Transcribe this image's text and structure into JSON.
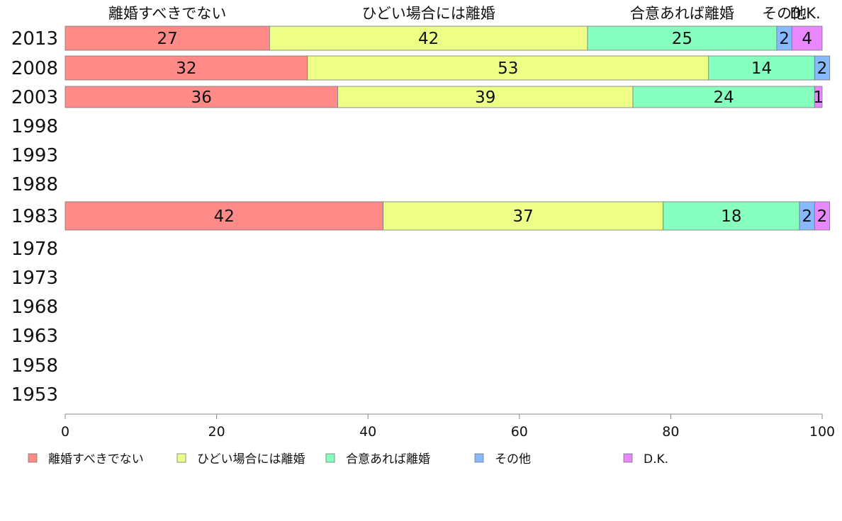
{
  "chart_data": {
    "type": "bar",
    "orientation": "horizontal",
    "stacked": true,
    "categories": [
      "2013",
      "2008",
      "2003",
      "1998",
      "1993",
      "1988",
      "1983",
      "1978",
      "1973",
      "1968",
      "1963",
      "1958",
      "1953"
    ],
    "series": [
      {
        "name": "離婚すべきでない",
        "values": [
          27,
          32,
          36,
          null,
          null,
          null,
          42,
          null,
          null,
          null,
          null,
          null,
          null
        ]
      },
      {
        "name": "ひどい場合には離婚",
        "values": [
          42,
          53,
          39,
          null,
          null,
          null,
          37,
          null,
          null,
          null,
          null,
          null,
          null
        ]
      },
      {
        "name": "合意あれば離婚",
        "values": [
          25,
          14,
          24,
          null,
          null,
          null,
          18,
          null,
          null,
          null,
          null,
          null,
          null
        ]
      },
      {
        "name": "その他",
        "values": [
          2,
          2,
          0,
          null,
          null,
          null,
          2,
          null,
          null,
          null,
          null,
          null,
          null
        ]
      },
      {
        "name": "D.K.",
        "values": [
          4,
          0,
          1,
          null,
          null,
          null,
          2,
          null,
          null,
          null,
          null,
          null,
          null
        ]
      }
    ],
    "top_labels": [
      "離婚すべきでない",
      "ひどい場合には離婚",
      "合意あれば離婚",
      "その他",
      "D.K."
    ],
    "xlim": [
      0,
      100
    ],
    "xticks": [
      0,
      20,
      40,
      60,
      80,
      100
    ],
    "legend_position": "bottom",
    "grid": false
  },
  "colors": {
    "series": [
      "#ff8a87",
      "#eeff87",
      "#87ffbe",
      "#87b9ff",
      "#e887ff"
    ],
    "axis": "#888888",
    "bar_border": "#777777"
  }
}
